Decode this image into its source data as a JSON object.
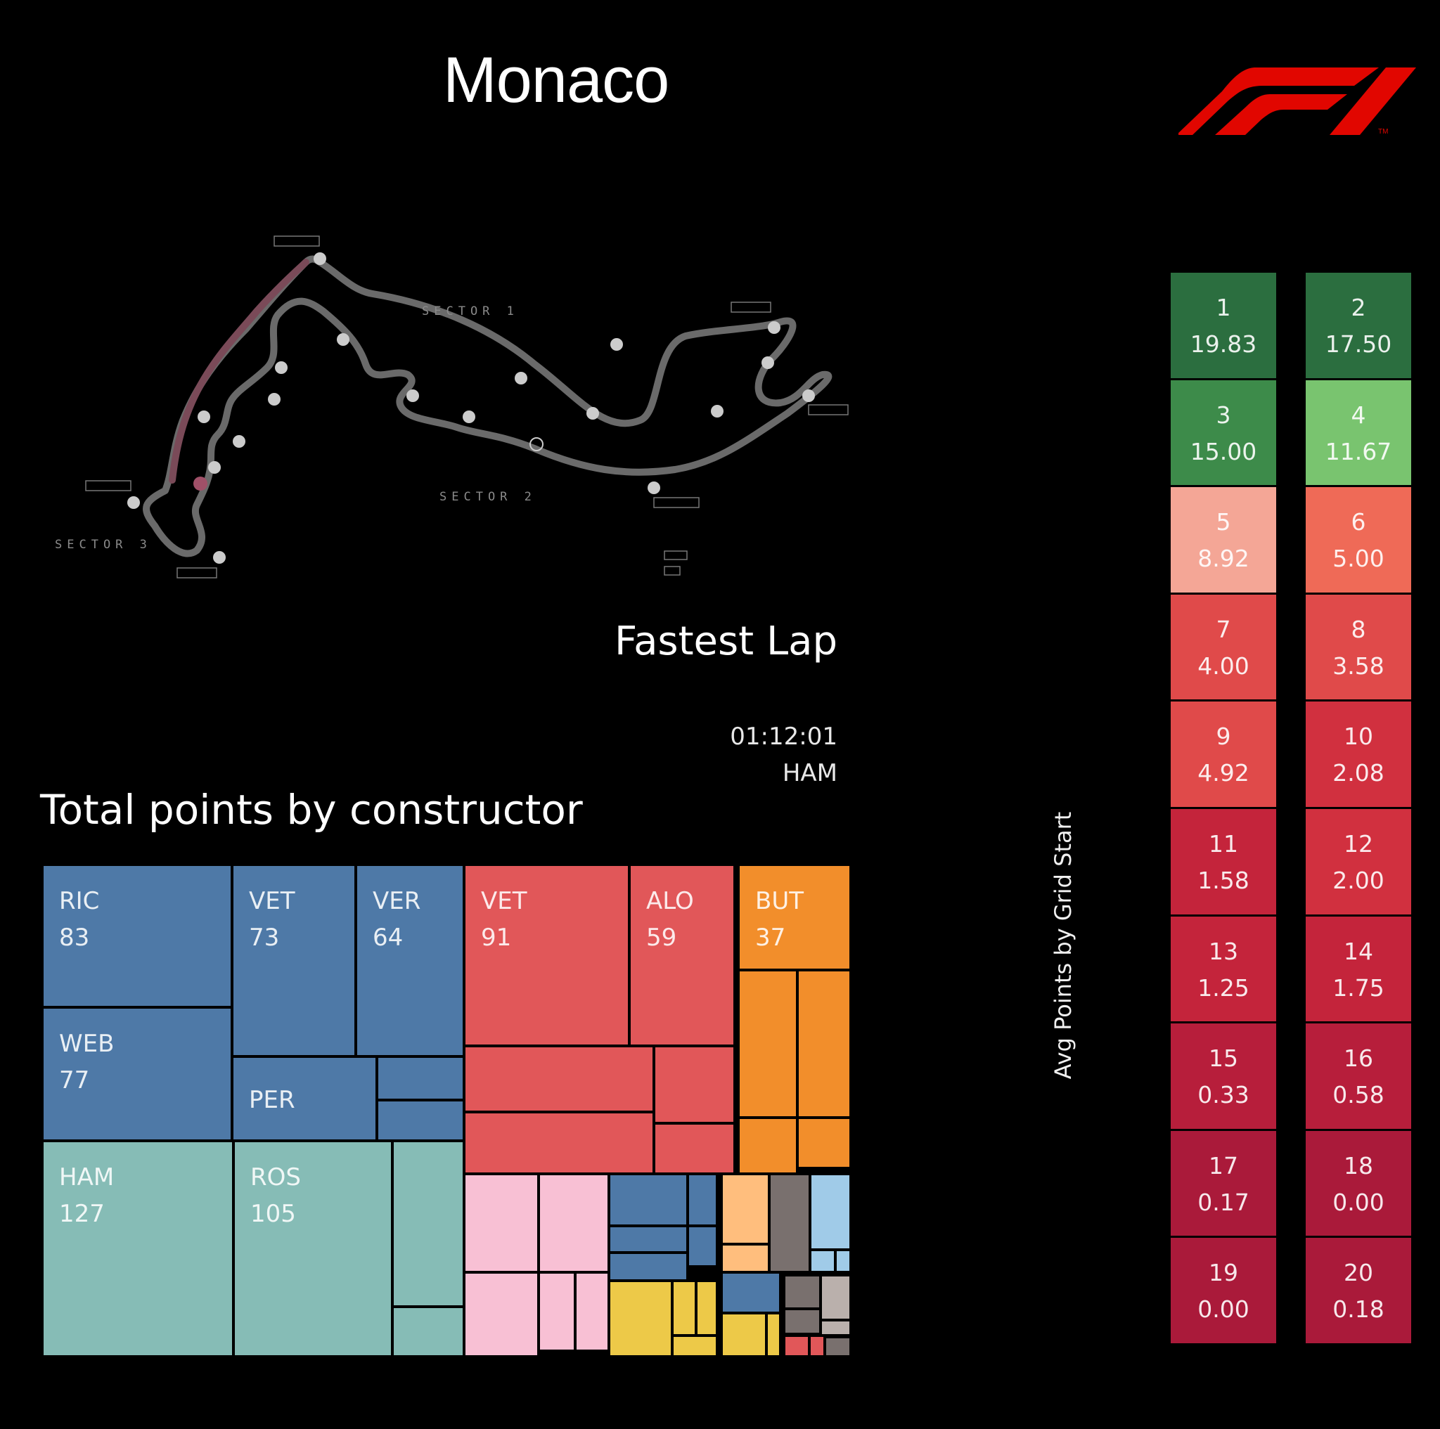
{
  "title": "Monaco",
  "fastest_lap": {
    "heading": "Fastest Lap",
    "time": "01:12:01",
    "driver": "HAM"
  },
  "treemap": {
    "title": "Total points by constructor"
  },
  "heatmap": {
    "axis_label": "Avg Points by Grid Start"
  },
  "track_map": {
    "sector_labels": [
      "SECTOR 1",
      "SECTOR 2",
      "SECTOR 3"
    ]
  },
  "colors": {
    "logo_red": "#e10600",
    "track": "#6a6a6a",
    "drs_zone": "#7a4a58"
  },
  "chart_data": [
    {
      "type": "treemap",
      "title": "Total points by constructor",
      "cells": [
        {
          "label": "RIC",
          "value": 83,
          "color": "#4e79a7"
        },
        {
          "label": "WEB",
          "value": 77,
          "color": "#4e79a7"
        },
        {
          "label": "VET",
          "value": 73,
          "color": "#4e79a7"
        },
        {
          "label": "VER",
          "value": 64,
          "color": "#4e79a7"
        },
        {
          "label": "PER",
          "value": null,
          "color": "#4e79a7"
        },
        {
          "label": "HAM",
          "value": 127,
          "color": "#86bcb6"
        },
        {
          "label": "ROS",
          "value": 105,
          "color": "#86bcb6"
        },
        {
          "label": "VET",
          "value": 91,
          "color": "#e15759"
        },
        {
          "label": "ALO",
          "value": 59,
          "color": "#e15759"
        },
        {
          "label": "BUT",
          "value": 37,
          "color": "#f28e2b"
        }
      ]
    },
    {
      "type": "heatmap",
      "title": "",
      "ylabel": "Avg Points by Grid Start",
      "cells": [
        {
          "grid": 1,
          "value": 19.83
        },
        {
          "grid": 2,
          "value": 17.5
        },
        {
          "grid": 3,
          "value": 15.0
        },
        {
          "grid": 4,
          "value": 11.67
        },
        {
          "grid": 5,
          "value": 8.92
        },
        {
          "grid": 6,
          "value": 5.0
        },
        {
          "grid": 7,
          "value": 4.0
        },
        {
          "grid": 8,
          "value": 3.58
        },
        {
          "grid": 9,
          "value": 4.92
        },
        {
          "grid": 10,
          "value": 2.08
        },
        {
          "grid": 11,
          "value": 1.58
        },
        {
          "grid": 12,
          "value": 2.0
        },
        {
          "grid": 13,
          "value": 1.25
        },
        {
          "grid": 14,
          "value": 1.75
        },
        {
          "grid": 15,
          "value": 0.33
        },
        {
          "grid": 16,
          "value": 0.58
        },
        {
          "grid": 17,
          "value": 0.17
        },
        {
          "grid": 18,
          "value": 0.0
        },
        {
          "grid": 19,
          "value": 0.0
        },
        {
          "grid": 20,
          "value": 0.18
        }
      ]
    }
  ]
}
